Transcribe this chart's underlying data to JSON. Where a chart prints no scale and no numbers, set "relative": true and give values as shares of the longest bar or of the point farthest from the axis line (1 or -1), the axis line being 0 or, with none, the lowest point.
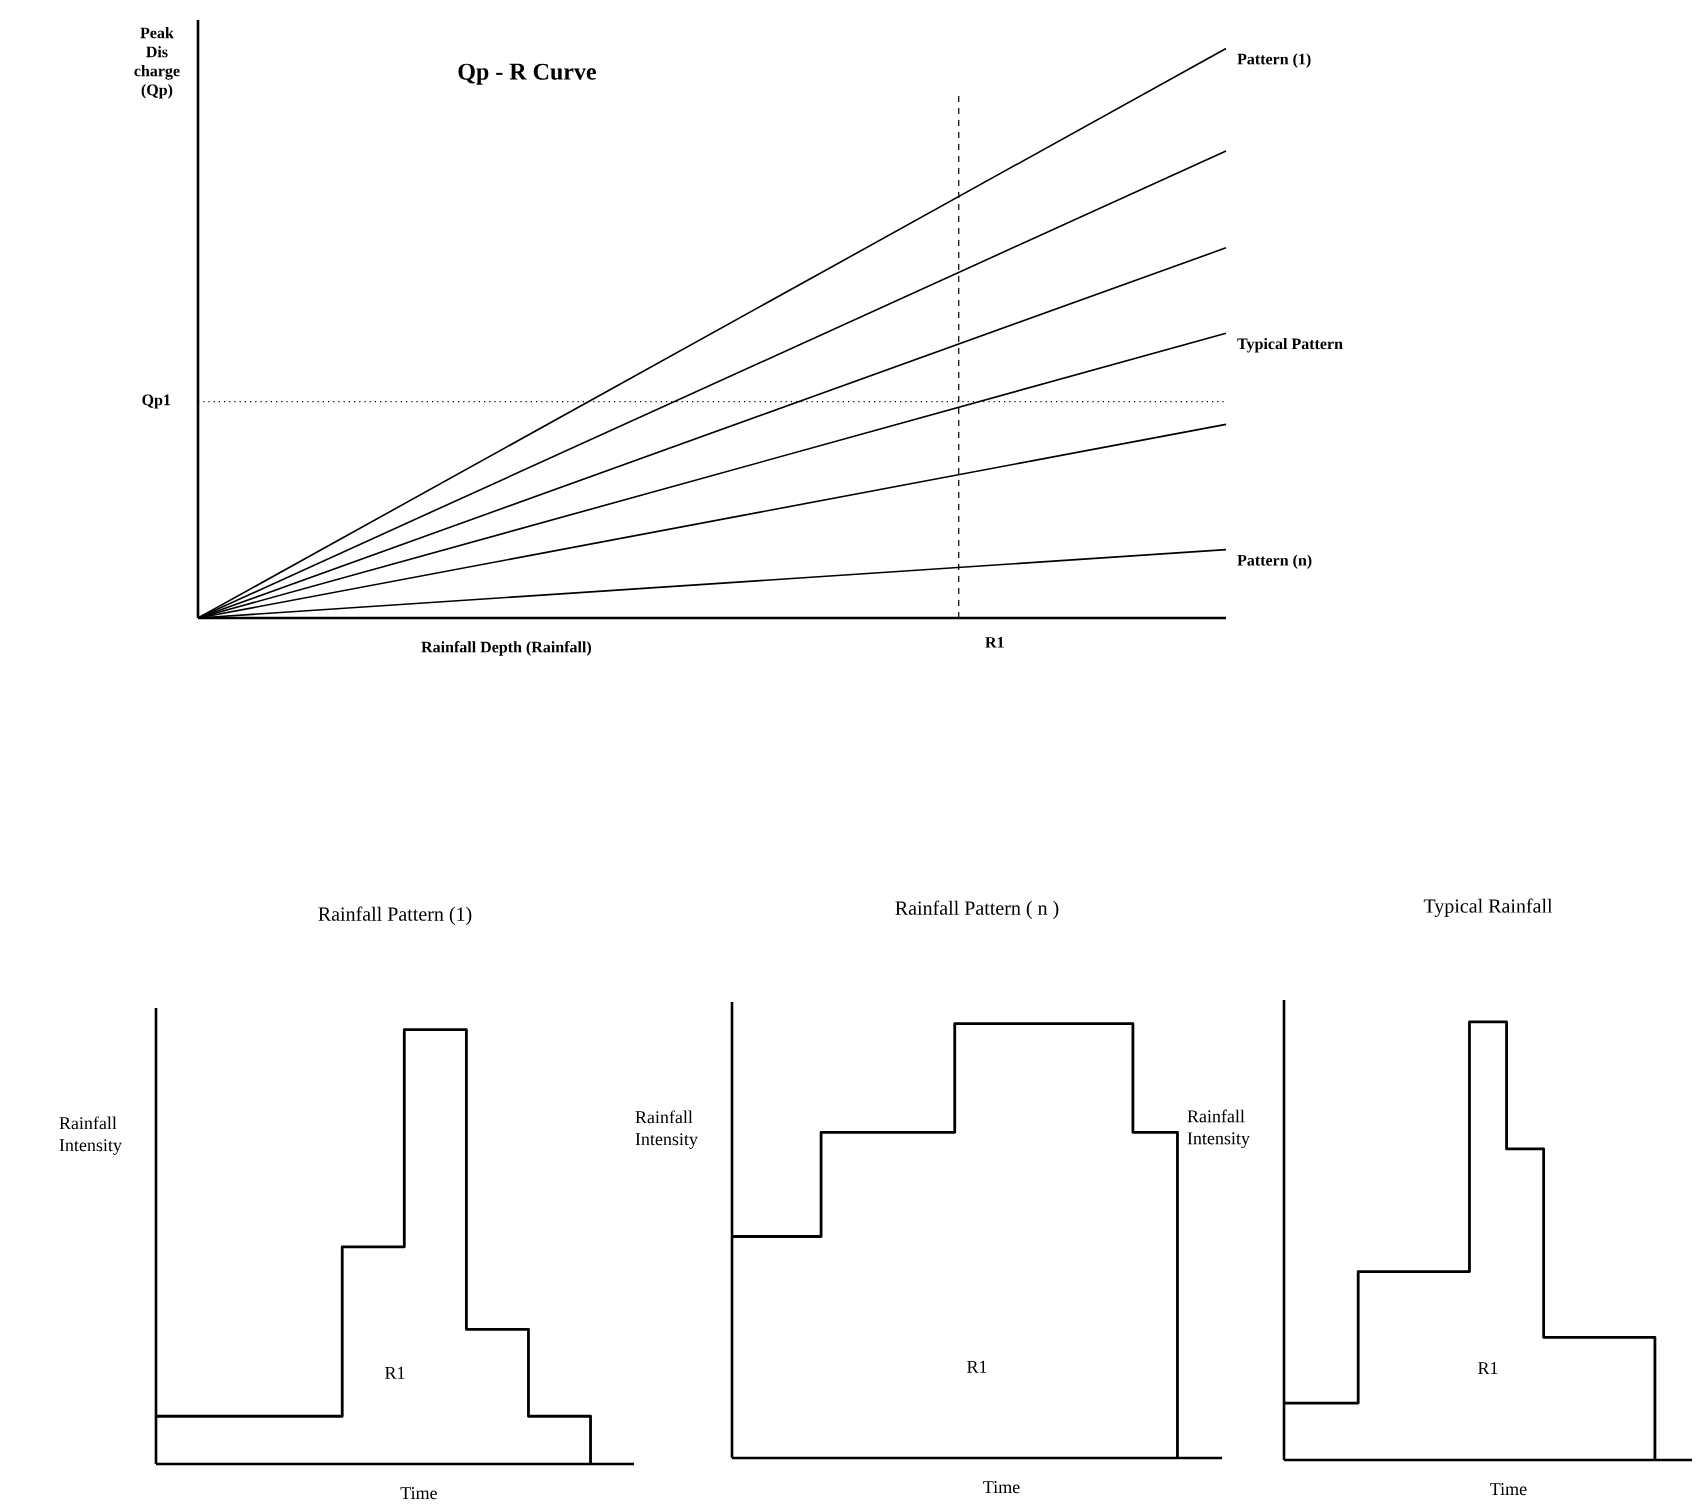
{
  "chart_data": [
    {
      "type": "line",
      "title": "Qp - R Curve",
      "xlabel": "Rainfall Depth (Rainfall)",
      "ylabel": "Peak Dis charge (Qp)",
      "relative": true,
      "categories": [
        null,
        null
      ],
      "series": [
        {
          "name": "Pattern (1)",
          "color": "#000000",
          "values": [
            0,
            1
          ]
        },
        {
          "color": "#000000",
          "values": [
            0,
            0.82
          ]
        },
        {
          "color": "#000000",
          "values": [
            0,
            0.65
          ]
        },
        {
          "name": "Typical Pattern",
          "color": "#000000",
          "values": [
            0,
            0.5
          ]
        },
        {
          "color": "#000000",
          "values": [
            0,
            0.34
          ]
        },
        {
          "name": "Pattern (n)",
          "color": "#000000",
          "values": [
            0,
            0.12
          ]
        }
      ],
      "ref_lines": [
        {
          "axis": "y",
          "value": 0.38,
          "label": "Qp1",
          "line_style": "dotted"
        }
      ],
      "annotations": [
        "R1"
      ]
    },
    {
      "type": "step",
      "title": "Rainfall Pattern (1)",
      "xlabel": "Time",
      "ylabel": "Rainfall Intensity",
      "relative": true,
      "categories": [
        null,
        null,
        null,
        null,
        null,
        null,
        null,
        null
      ],
      "values": [
        0.11,
        0.11,
        0.11,
        0.5,
        1,
        0.31,
        0.11,
        0
      ],
      "color": "#000000",
      "annotations": [
        "R1"
      ]
    },
    {
      "type": "step",
      "title": "Rainfall Pattern ( n )",
      "xlabel": "Time",
      "ylabel": "Rainfall Intensity",
      "relative": true,
      "categories": [
        null,
        null,
        null,
        null,
        null,
        null,
        null,
        null,
        null,
        null,
        null
      ],
      "values": [
        0.51,
        0.51,
        0.75,
        0.75,
        0.75,
        1,
        1,
        1,
        1,
        0.75,
        0
      ],
      "color": "#000000",
      "annotations": [
        "R1"
      ]
    },
    {
      "type": "step",
      "title": "Typical Rainfall",
      "xlabel": "Time",
      "ylabel": "Rainfall Intensity",
      "relative": true,
      "categories": [
        null,
        null,
        null,
        null,
        null,
        null,
        null,
        null,
        null,
        null,
        null
      ],
      "values": [
        0.13,
        0.13,
        0.43,
        0.43,
        0.43,
        1,
        0.71,
        0.28,
        0.28,
        0.28,
        0
      ],
      "color": "#000000",
      "annotations": [
        "R1"
      ]
    }
  ]
}
